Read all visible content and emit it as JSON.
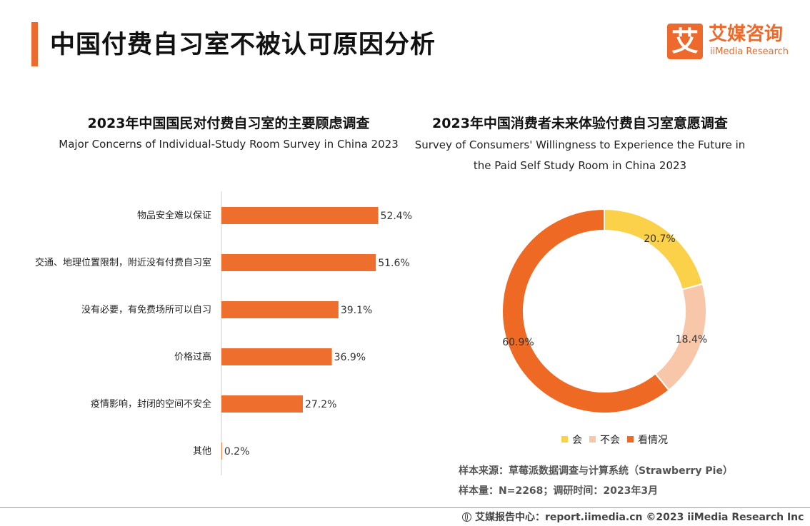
{
  "header": {
    "title": "中国付费自习室不被认可原因分析",
    "logo": {
      "glyph": "艾",
      "cn": "艾媒咨询",
      "en": "iiMedia Research"
    }
  },
  "left_chart": {
    "title": "2023年中国国民对付费自习室的主要顾虑调查",
    "subtitle": "Major Concerns of Individual-Study Room Survey in China 2023"
  },
  "right_chart": {
    "title": "2023年中国消费者未来体验付费自习室意愿调查",
    "subtitle_line1": "Survey of Consumers' Willingness to Experience the Future in",
    "subtitle_line2": "the Paid Self Study Room in China 2023"
  },
  "chart_data": [
    {
      "type": "bar",
      "orientation": "horizontal",
      "categories": [
        "物品安全难以保证",
        "交通、地理位置限制，附近没有付费自习室",
        "没有必要，有免费场所可以自习",
        "价格过高",
        "疫情影响，封闭的空间不安全",
        "其他"
      ],
      "values": [
        52.4,
        51.6,
        39.1,
        36.9,
        27.2,
        0.2
      ],
      "value_labels": [
        "52.4%",
        "51.6%",
        "39.1%",
        "36.9%",
        "27.2%",
        "0.2%"
      ],
      "unit": "%",
      "color": "#ee6f2d",
      "grid": false
    },
    {
      "type": "pie",
      "style": "donut",
      "categories": [
        "会",
        "不会",
        "看情况"
      ],
      "values": [
        20.7,
        18.4,
        60.9
      ],
      "value_labels": [
        "20.7%",
        "18.4%",
        "60.9%"
      ],
      "colors": [
        "#fcd14a",
        "#f8c6a8",
        "#ee6a24"
      ],
      "legend_position": "bottom"
    }
  ],
  "source": {
    "line1": "样本来源：草莓派数据调查与计算系统（Strawberry Pie）",
    "line2": "样本量：N=2268；调研时间：2023年3月"
  },
  "footer": {
    "text": "艾媒报告中心：report.iimedia.cn  ©2023  iiMedia Research  Inc",
    "icon": "globe-icon"
  }
}
